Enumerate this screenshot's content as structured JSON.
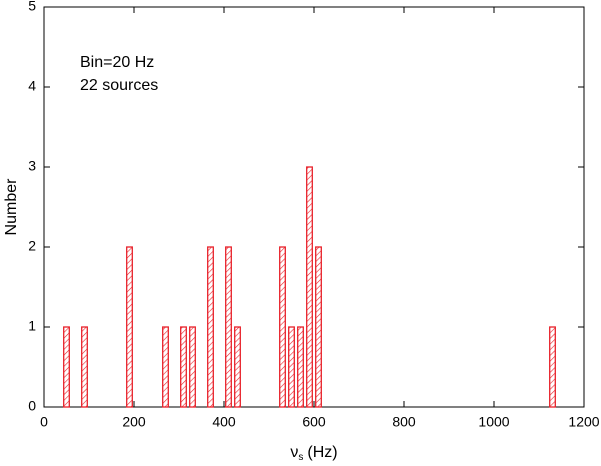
{
  "chart_data": {
    "type": "histogram",
    "x_label": {
      "symbol": "ν",
      "subscript": "s",
      "unit": "(Hz)"
    },
    "y_label": "Number",
    "annotations": [
      "Bin=20 Hz",
      "22 sources"
    ],
    "x": [
      50,
      90,
      190,
      270,
      310,
      330,
      370,
      410,
      430,
      530,
      550,
      570,
      590,
      610,
      1130
    ],
    "values": [
      1,
      1,
      2,
      1,
      1,
      1,
      2,
      2,
      1,
      2,
      1,
      1,
      3,
      2,
      1
    ],
    "color": "#e8212a",
    "xlim": [
      0,
      1200
    ],
    "xticks": [
      0,
      200,
      400,
      600,
      800,
      1000,
      1200
    ],
    "ylim": [
      0,
      5
    ],
    "yticks": [
      0,
      1,
      2,
      3,
      4,
      5
    ]
  }
}
